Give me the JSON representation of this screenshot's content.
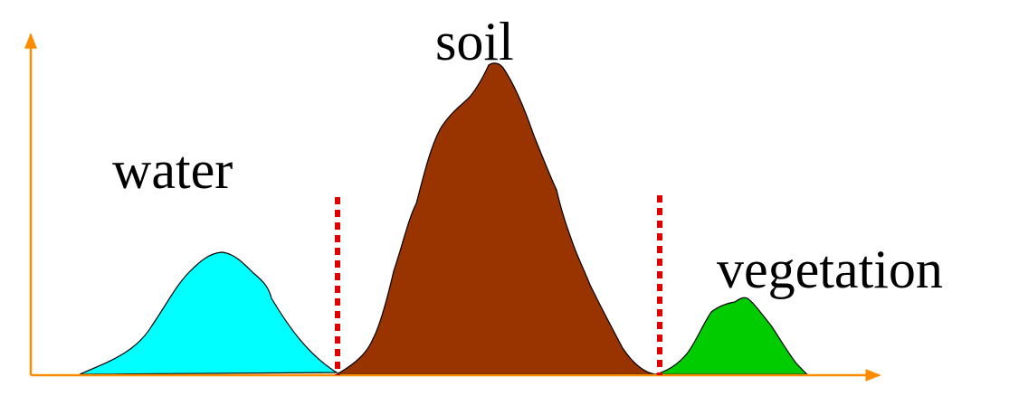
{
  "colors": {
    "axis": "#FF8C00",
    "threshold": "#E00000",
    "outline": "#000000",
    "background": "#FFFFFF"
  },
  "classes": [
    {
      "label": "water",
      "fill": "#00FFFF"
    },
    {
      "label": "soil",
      "fill": "#993300"
    },
    {
      "label": "vegetation",
      "fill": "#00CC00"
    }
  ],
  "thresholds": 2
}
